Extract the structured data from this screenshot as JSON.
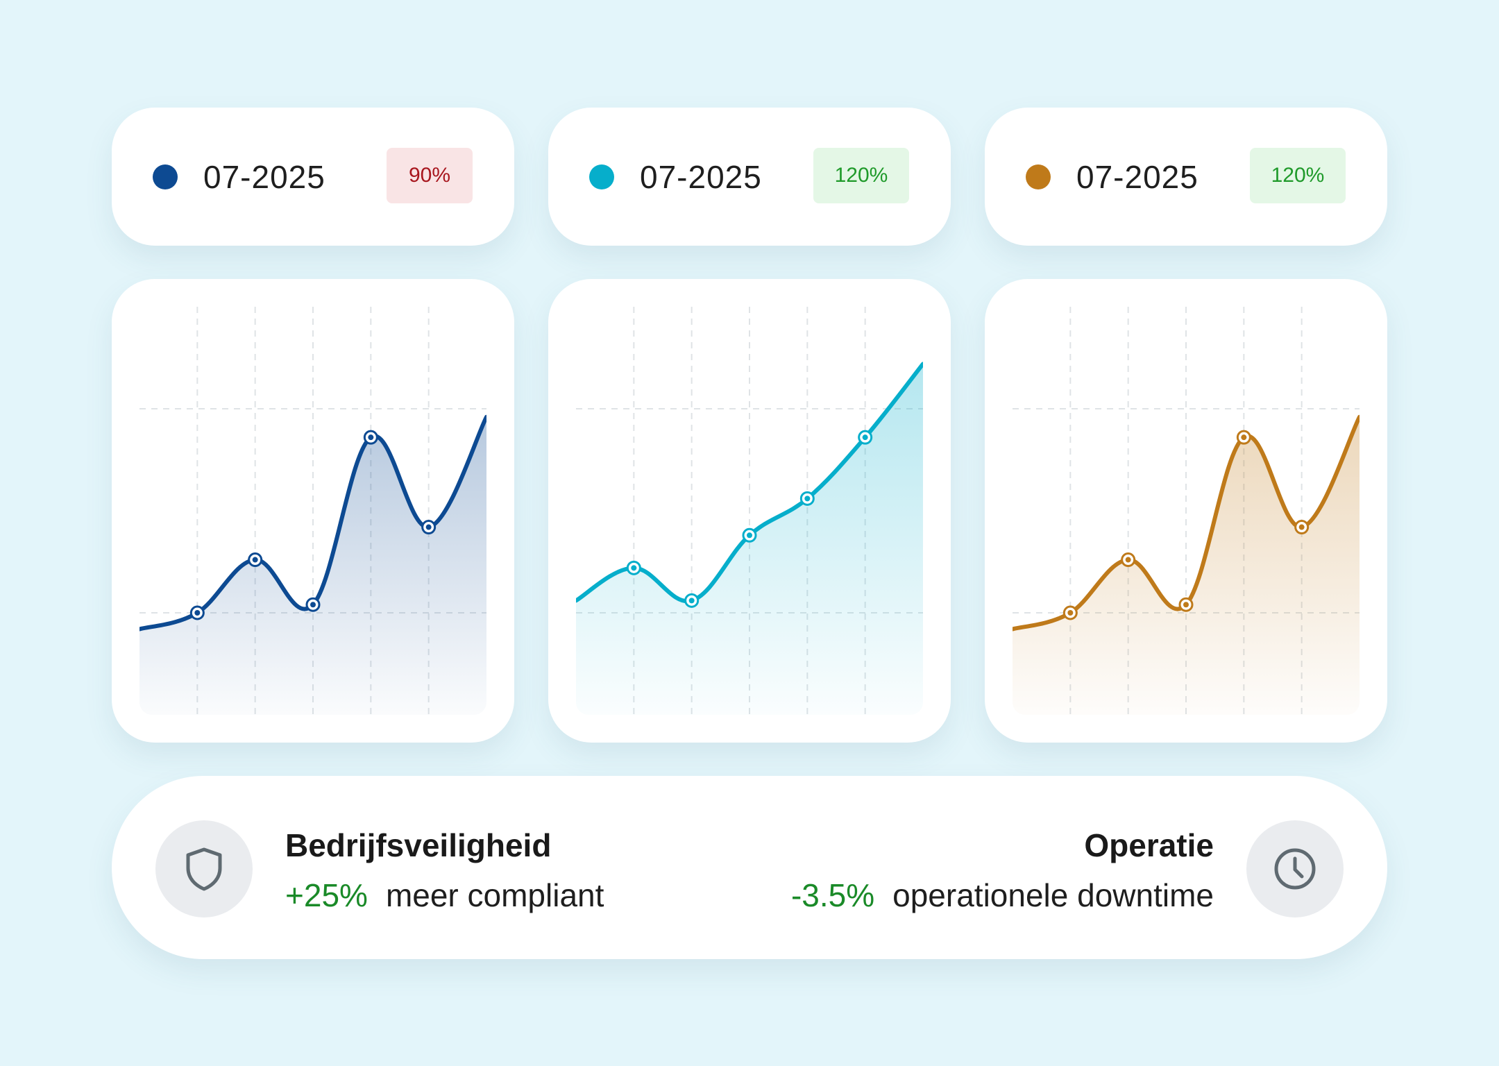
{
  "legend_cards": [
    {
      "date": "07-2025",
      "badge": "90%",
      "badge_type": "negative",
      "color": "#0d4a92"
    },
    {
      "date": "07-2025",
      "badge": "120%",
      "badge_type": "positive",
      "color": "#06aecb"
    },
    {
      "date": "07-2025",
      "badge": "120%",
      "badge_type": "positive",
      "color": "#bf7a1a"
    }
  ],
  "chart_data": [
    {
      "type": "area",
      "title": "",
      "xlabel": "",
      "ylabel": "",
      "grid": true,
      "color": "#0d4a92",
      "x": [
        0,
        1,
        2,
        3,
        4,
        5,
        6
      ],
      "y": [
        21,
        25,
        38,
        27,
        68,
        46,
        73
      ],
      "marked_points": [
        1,
        2,
        3,
        4,
        5
      ],
      "ylim": [
        0,
        100
      ]
    },
    {
      "type": "area",
      "title": "",
      "xlabel": "",
      "ylabel": "",
      "grid": true,
      "color": "#06aecb",
      "x": [
        0,
        1,
        2,
        3,
        4,
        5,
        6
      ],
      "y": [
        28,
        36,
        28,
        44,
        53,
        68,
        86
      ],
      "marked_points": [
        1,
        2,
        3,
        4,
        5
      ],
      "ylim": [
        0,
        100
      ]
    },
    {
      "type": "area",
      "title": "",
      "xlabel": "",
      "ylabel": "",
      "grid": true,
      "color": "#bf7a1a",
      "x": [
        0,
        1,
        2,
        3,
        4,
        5,
        6
      ],
      "y": [
        21,
        25,
        38,
        27,
        68,
        46,
        73
      ],
      "marked_points": [
        1,
        2,
        3,
        4,
        5
      ],
      "ylim": [
        0,
        100
      ]
    }
  ],
  "stats": {
    "left": {
      "title": "Bedrijfsveiligheid",
      "value": "+25%",
      "text": "meer compliant",
      "icon": "shield-icon"
    },
    "right": {
      "title": "Operatie",
      "value": "-3.5%",
      "text": "operationele downtime",
      "icon": "clock-icon"
    }
  }
}
